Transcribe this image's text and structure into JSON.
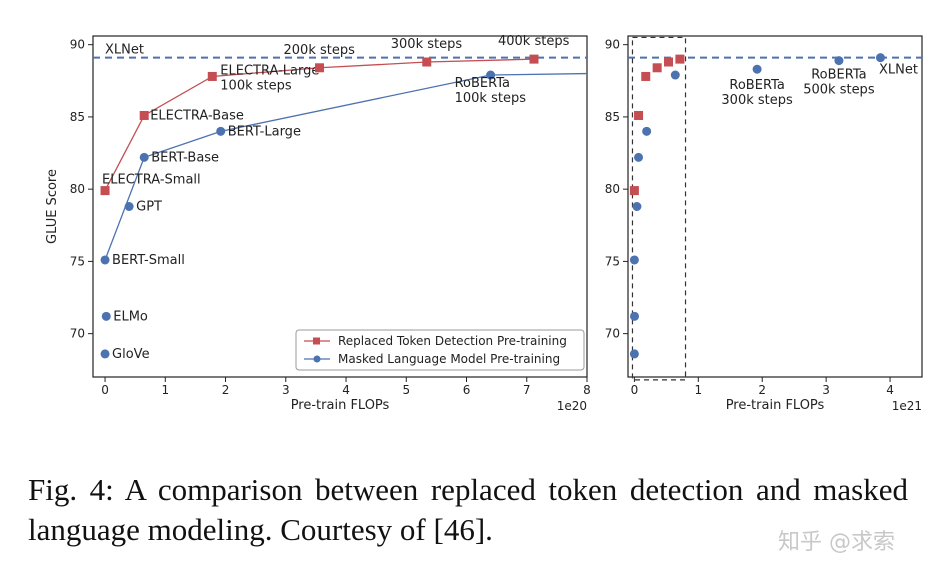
{
  "caption": "Fig. 4: A comparison between replaced token detection and masked language modeling. Courtesy of [46].",
  "watermark": "知乎 @求索",
  "colors": {
    "rtd": "#c44e52",
    "mlm": "#4c72b0",
    "dashed": "#4c72b0"
  },
  "chart_data": [
    {
      "type": "line",
      "xlabel": "Pre-train FLOPs",
      "ylabel": "GLUE Score",
      "x_offset_label": "1e20",
      "xlim": [
        -0.2,
        8
      ],
      "ylim": [
        67,
        90.6
      ],
      "xticks": [
        0,
        1,
        2,
        3,
        4,
        5,
        6,
        7,
        8
      ],
      "yticks": [
        70,
        75,
        80,
        85,
        90
      ],
      "grid": false,
      "legend_position": "lower-right",
      "reference_line": {
        "y": 89.1,
        "label": "XLNet"
      },
      "series": [
        {
          "name": "Replaced Token Detection Pre-training",
          "marker": "square",
          "points": [
            {
              "x": 0.0,
              "y": 79.9,
              "label": "ELECTRA-Small"
            },
            {
              "x": 0.65,
              "y": 85.1,
              "label": "ELECTRA-Base"
            },
            {
              "x": 1.78,
              "y": 87.8,
              "label": "ELECTRA-Large\n100k steps"
            },
            {
              "x": 3.56,
              "y": 88.4,
              "label": "200k steps"
            },
            {
              "x": 5.34,
              "y": 88.8,
              "label": "300k steps"
            },
            {
              "x": 7.12,
              "y": 89.0,
              "label": "400k steps"
            }
          ]
        },
        {
          "name": "Masked Language Model Pre-training",
          "marker": "circle",
          "points": [
            {
              "x": 0.0,
              "y": 75.1,
              "label": "BERT-Small",
              "connected": true
            },
            {
              "x": 0.65,
              "y": 82.2,
              "label": "BERT-Base",
              "connected": true
            },
            {
              "x": 1.92,
              "y": 84.0,
              "label": "BERT-Large",
              "connected": true
            },
            {
              "x": 6.4,
              "y": 87.9,
              "label": "RoBERTa\n100k steps",
              "connected": true
            },
            {
              "x": 8.0,
              "y": 88.0,
              "label": "",
              "connected": true,
              "hidden": true
            },
            {
              "x": 0.4,
              "y": 78.8,
              "label": "GPT",
              "connected": false
            },
            {
              "x": 0.02,
              "y": 71.2,
              "label": "ELMo",
              "connected": false
            },
            {
              "x": 0.0,
              "y": 68.6,
              "label": "GloVe",
              "connected": false
            }
          ]
        }
      ]
    },
    {
      "type": "scatter",
      "xlabel": "Pre-train FLOPs",
      "x_offset_label": "1e21",
      "xlim": [
        -0.1,
        4.5
      ],
      "ylim": [
        67,
        90.6
      ],
      "xticks": [
        0,
        1,
        2,
        3,
        4
      ],
      "yticks": [
        70,
        75,
        80,
        85,
        90
      ],
      "grid": false,
      "reference_line": {
        "y": 89.1
      },
      "zoom_box": {
        "x": [
          -0.03,
          0.8
        ],
        "y": [
          66.8,
          90.5
        ]
      },
      "series": [
        {
          "name": "Replaced Token Detection Pre-training",
          "marker": "square",
          "points": [
            {
              "x": 0.0,
              "y": 79.9
            },
            {
              "x": 0.065,
              "y": 85.1
            },
            {
              "x": 0.178,
              "y": 87.8
            },
            {
              "x": 0.356,
              "y": 88.4
            },
            {
              "x": 0.534,
              "y": 88.8
            },
            {
              "x": 0.712,
              "y": 89.0
            }
          ]
        },
        {
          "name": "Masked Language Model Pre-training",
          "marker": "circle",
          "points": [
            {
              "x": 0.0,
              "y": 68.6
            },
            {
              "x": 0.002,
              "y": 71.2
            },
            {
              "x": 0.0,
              "y": 75.1
            },
            {
              "x": 0.04,
              "y": 78.8
            },
            {
              "x": 0.065,
              "y": 82.2
            },
            {
              "x": 0.192,
              "y": 84.0
            },
            {
              "x": 0.64,
              "y": 87.9
            },
            {
              "x": 1.92,
              "y": 88.3,
              "label": "RoBERTa\n300k steps"
            },
            {
              "x": 3.2,
              "y": 88.9,
              "label": "RoBERTa\n500k steps"
            },
            {
              "x": 3.85,
              "y": 89.1,
              "label": "XLNet"
            }
          ]
        }
      ]
    }
  ]
}
